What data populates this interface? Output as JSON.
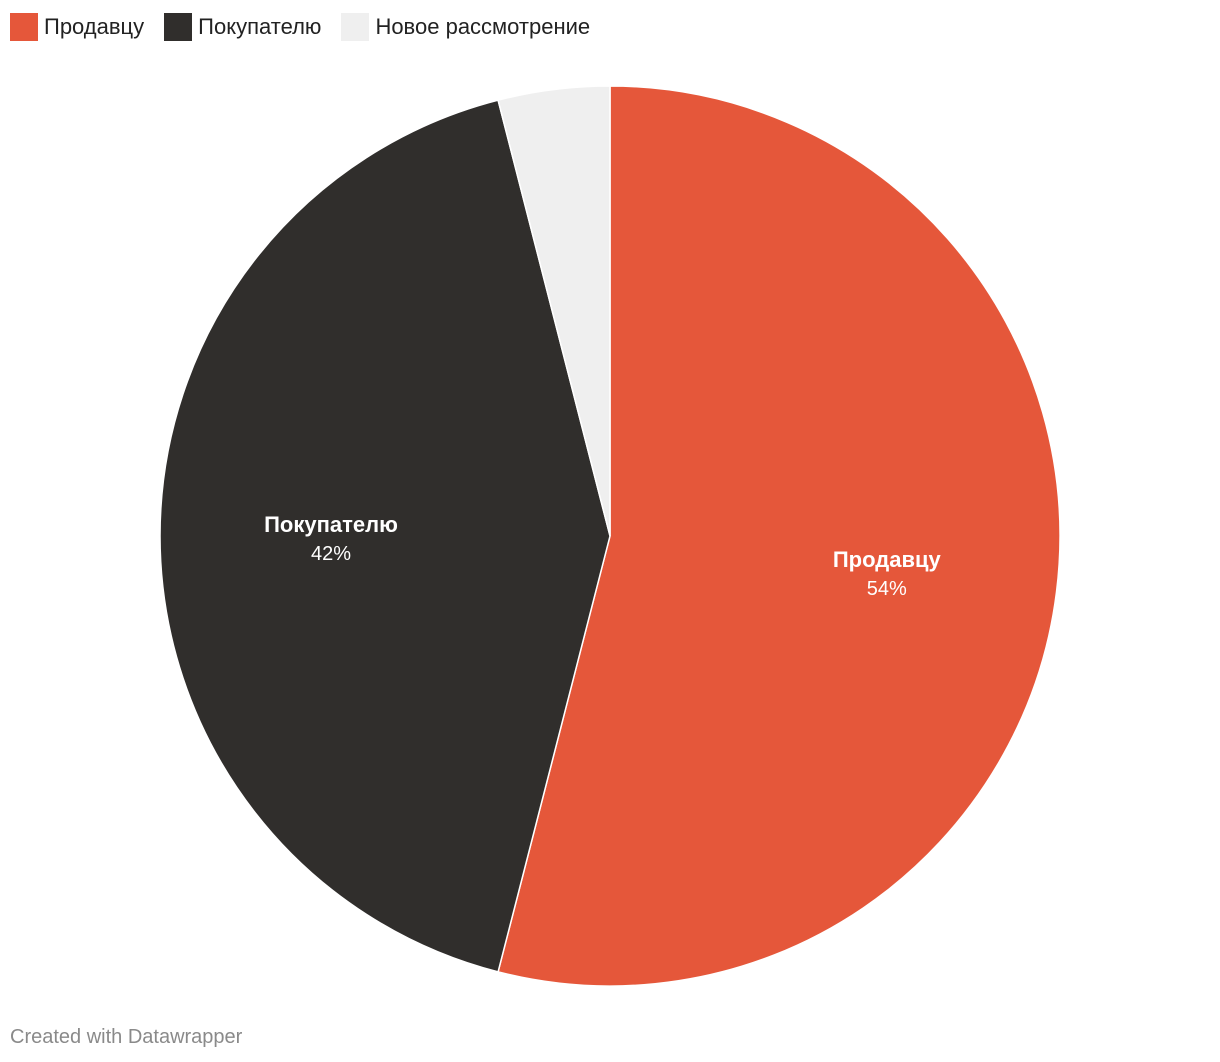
{
  "chart_data": {
    "type": "pie",
    "categories": [
      "Продавцу",
      "Покупателю",
      "Новое рассмотрение"
    ],
    "values": [
      54,
      42,
      4
    ],
    "labels": [
      "54%",
      "42%",
      ""
    ],
    "colors": [
      "#e5573a",
      "#302e2c",
      "#efefef"
    ],
    "legend_position": "top-left",
    "start_angle_deg": 0,
    "direction": "clockwise"
  },
  "legend": {
    "items": [
      {
        "label": "Продавцу",
        "color": "#e5573a"
      },
      {
        "label": "Покупателю",
        "color": "#302e2c"
      },
      {
        "label": "Новое рассмотрение",
        "color": "#efefef"
      }
    ]
  },
  "footer": {
    "credit": "Created with Datawrapper"
  }
}
